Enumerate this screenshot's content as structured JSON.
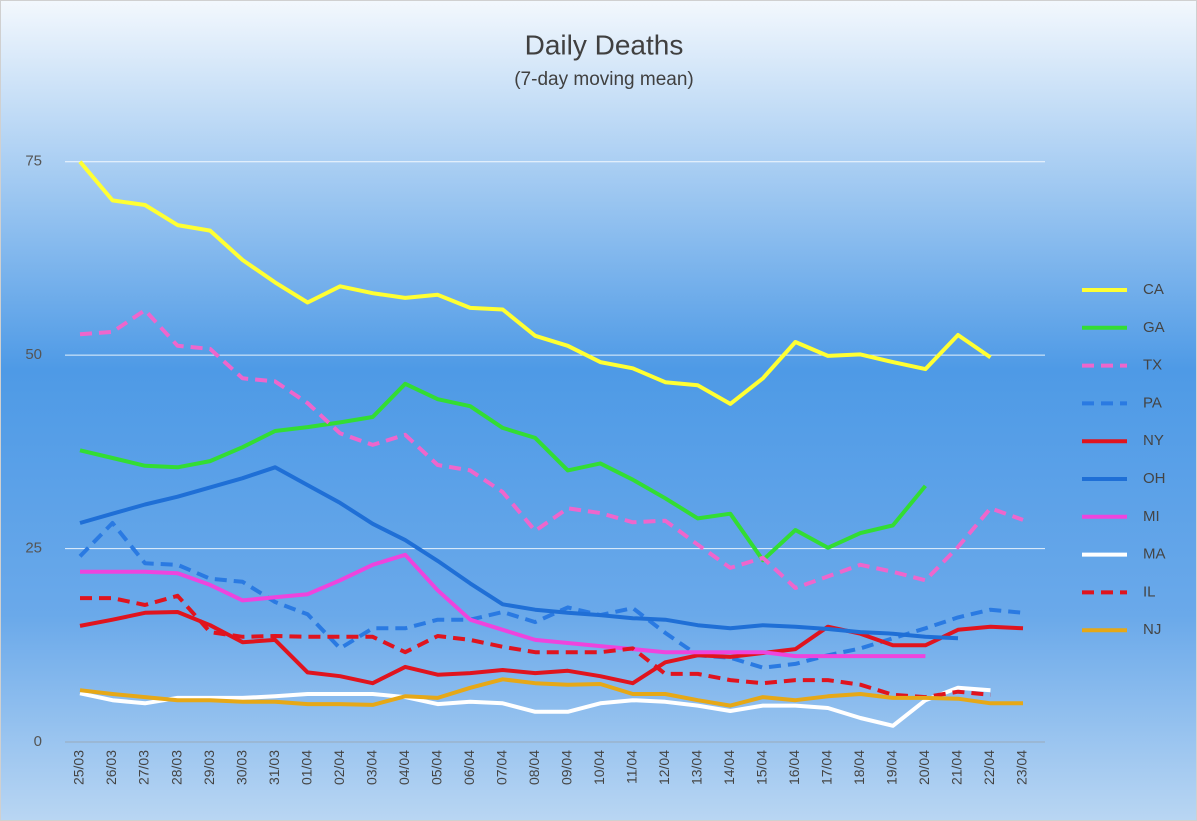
{
  "chart_data": {
    "type": "line",
    "title": "Daily Deaths",
    "subtitle": "(7-day moving mean)",
    "categories": [
      "25/03",
      "26/03",
      "27/03",
      "28/03",
      "29/03",
      "30/03",
      "31/03",
      "01/04",
      "02/04",
      "03/04",
      "04/04",
      "05/04",
      "06/04",
      "07/04",
      "08/04",
      "09/04",
      "10/04",
      "11/04",
      "12/04",
      "13/04",
      "14/04",
      "15/04",
      "16/04",
      "17/04",
      "18/04",
      "19/04",
      "20/04",
      "21/04",
      "22/04",
      "23/04"
    ],
    "ylim": [
      0,
      80
    ],
    "yticks": [
      0,
      25,
      50,
      75
    ],
    "grid": true,
    "legend": "right",
    "series": [
      {
        "name": "CA",
        "color": "#ffff33",
        "dashed": false,
        "values": [
          75,
          70,
          69.4,
          66.8,
          66.1,
          62.3,
          59.4,
          56.8,
          58.9,
          58,
          57.4,
          57.8,
          56.1,
          55.9,
          52.5,
          51.2,
          49.1,
          48.3,
          46.5,
          46.1,
          43.7,
          47,
          51.7,
          49.9,
          50.1,
          49.1,
          48.2,
          52.6,
          49.7,
          null
        ]
      },
      {
        "name": "GA",
        "color": "#33dd33",
        "dashed": false,
        "values": [
          37.7,
          36.7,
          35.7,
          35.5,
          36.3,
          38.1,
          40.2,
          40.7,
          41.3,
          42,
          46.3,
          44.3,
          43.4,
          40.6,
          39.3,
          35.1,
          36,
          33.9,
          31.5,
          28.9,
          29.5,
          23.5,
          27.4,
          25.1,
          27,
          28,
          33.1,
          null,
          null,
          null
        ]
      },
      {
        "name": "TX",
        "color": "#ee66cc",
        "dashed": true,
        "values": [
          52.7,
          53,
          55.8,
          51.2,
          50.8,
          47,
          46.6,
          43.8,
          39.9,
          38.4,
          39.7,
          35.8,
          35.1,
          32.3,
          27.3,
          30.2,
          29.6,
          28.4,
          28.6,
          25.5,
          22.5,
          23.8,
          19.9,
          21.4,
          22.9,
          22,
          20.9,
          25.2,
          30.2,
          28.7
        ]
      },
      {
        "name": "PA",
        "color": "#2a7ae2",
        "dashed": true,
        "values": [
          24,
          28.3,
          23.1,
          22.9,
          21.1,
          20.7,
          18.1,
          16.5,
          12.1,
          14.7,
          14.7,
          15.8,
          15.8,
          16.8,
          15.5,
          17.4,
          16.4,
          17.3,
          14.1,
          11.2,
          10.9,
          9.6,
          10.1,
          11.2,
          12.1,
          13.4,
          14.7,
          16.1,
          17.1,
          16.7
        ]
      },
      {
        "name": "NY",
        "color": "#e0141e",
        "dashed": false,
        "values": [
          15,
          15.8,
          16.7,
          16.8,
          15.1,
          12.9,
          13.2,
          9,
          8.5,
          7.6,
          9.7,
          8.7,
          8.9,
          9.3,
          8.9,
          9.2,
          8.5,
          7.6,
          10.3,
          11.2,
          11,
          11.5,
          12,
          14.9,
          14,
          12.5,
          12.5,
          14.5,
          14.9,
          14.7
        ]
      },
      {
        "name": "OH",
        "color": "#1f6fd6",
        "dashed": false,
        "values": [
          28.3,
          29.5,
          30.7,
          31.7,
          32.9,
          34.1,
          35.5,
          33.2,
          30.9,
          28.2,
          26.1,
          23.4,
          20.5,
          17.8,
          17.1,
          16.7,
          16.4,
          16,
          15.8,
          15.1,
          14.7,
          15.1,
          14.9,
          14.6,
          14.2,
          14,
          13.6,
          13.4,
          null,
          null
        ]
      },
      {
        "name": "MI",
        "color": "#ee44dd",
        "dashed": false,
        "values": [
          22,
          22,
          22,
          21.8,
          20.3,
          18.3,
          18.7,
          19.1,
          20.9,
          22.9,
          24.2,
          19.6,
          15.8,
          14.5,
          13.2,
          12.8,
          12.4,
          12,
          11.6,
          11.6,
          11.6,
          11.6,
          11.1,
          11.1,
          11.1,
          11.1,
          11.1,
          null,
          null,
          null
        ]
      },
      {
        "name": "MA",
        "color": "#ffffff",
        "dashed": false,
        "values": [
          6.3,
          5.4,
          5,
          5.7,
          5.7,
          5.7,
          5.9,
          6.2,
          6.2,
          6.2,
          5.8,
          4.9,
          5.2,
          5,
          3.9,
          3.9,
          5,
          5.4,
          5.2,
          4.7,
          4,
          4.7,
          4.7,
          4.4,
          3.1,
          2.1,
          5.4,
          7,
          6.7,
          null
        ]
      },
      {
        "name": "IL",
        "color": "#e0141e",
        "dashed": true,
        "values": [
          18.6,
          18.6,
          17.7,
          18.9,
          14.2,
          13.6,
          13.7,
          13.6,
          13.6,
          13.6,
          11.6,
          13.7,
          13.2,
          12.3,
          11.6,
          11.6,
          11.6,
          12.1,
          8.8,
          8.8,
          8,
          7.6,
          8,
          8,
          7.4,
          6.1,
          5.8,
          6.5,
          6.1,
          null
        ]
      },
      {
        "name": "NJ",
        "color": "#e6a817",
        "dashed": false,
        "values": [
          6.7,
          6.2,
          5.8,
          5.4,
          5.4,
          5.2,
          5.2,
          4.9,
          4.9,
          4.8,
          5.9,
          5.7,
          7,
          8.1,
          7.6,
          7.4,
          7.5,
          6.2,
          6.2,
          5.4,
          4.7,
          5.8,
          5.4,
          5.9,
          6.2,
          5.7,
          5.7,
          5.6,
          5,
          5
        ]
      }
    ]
  }
}
